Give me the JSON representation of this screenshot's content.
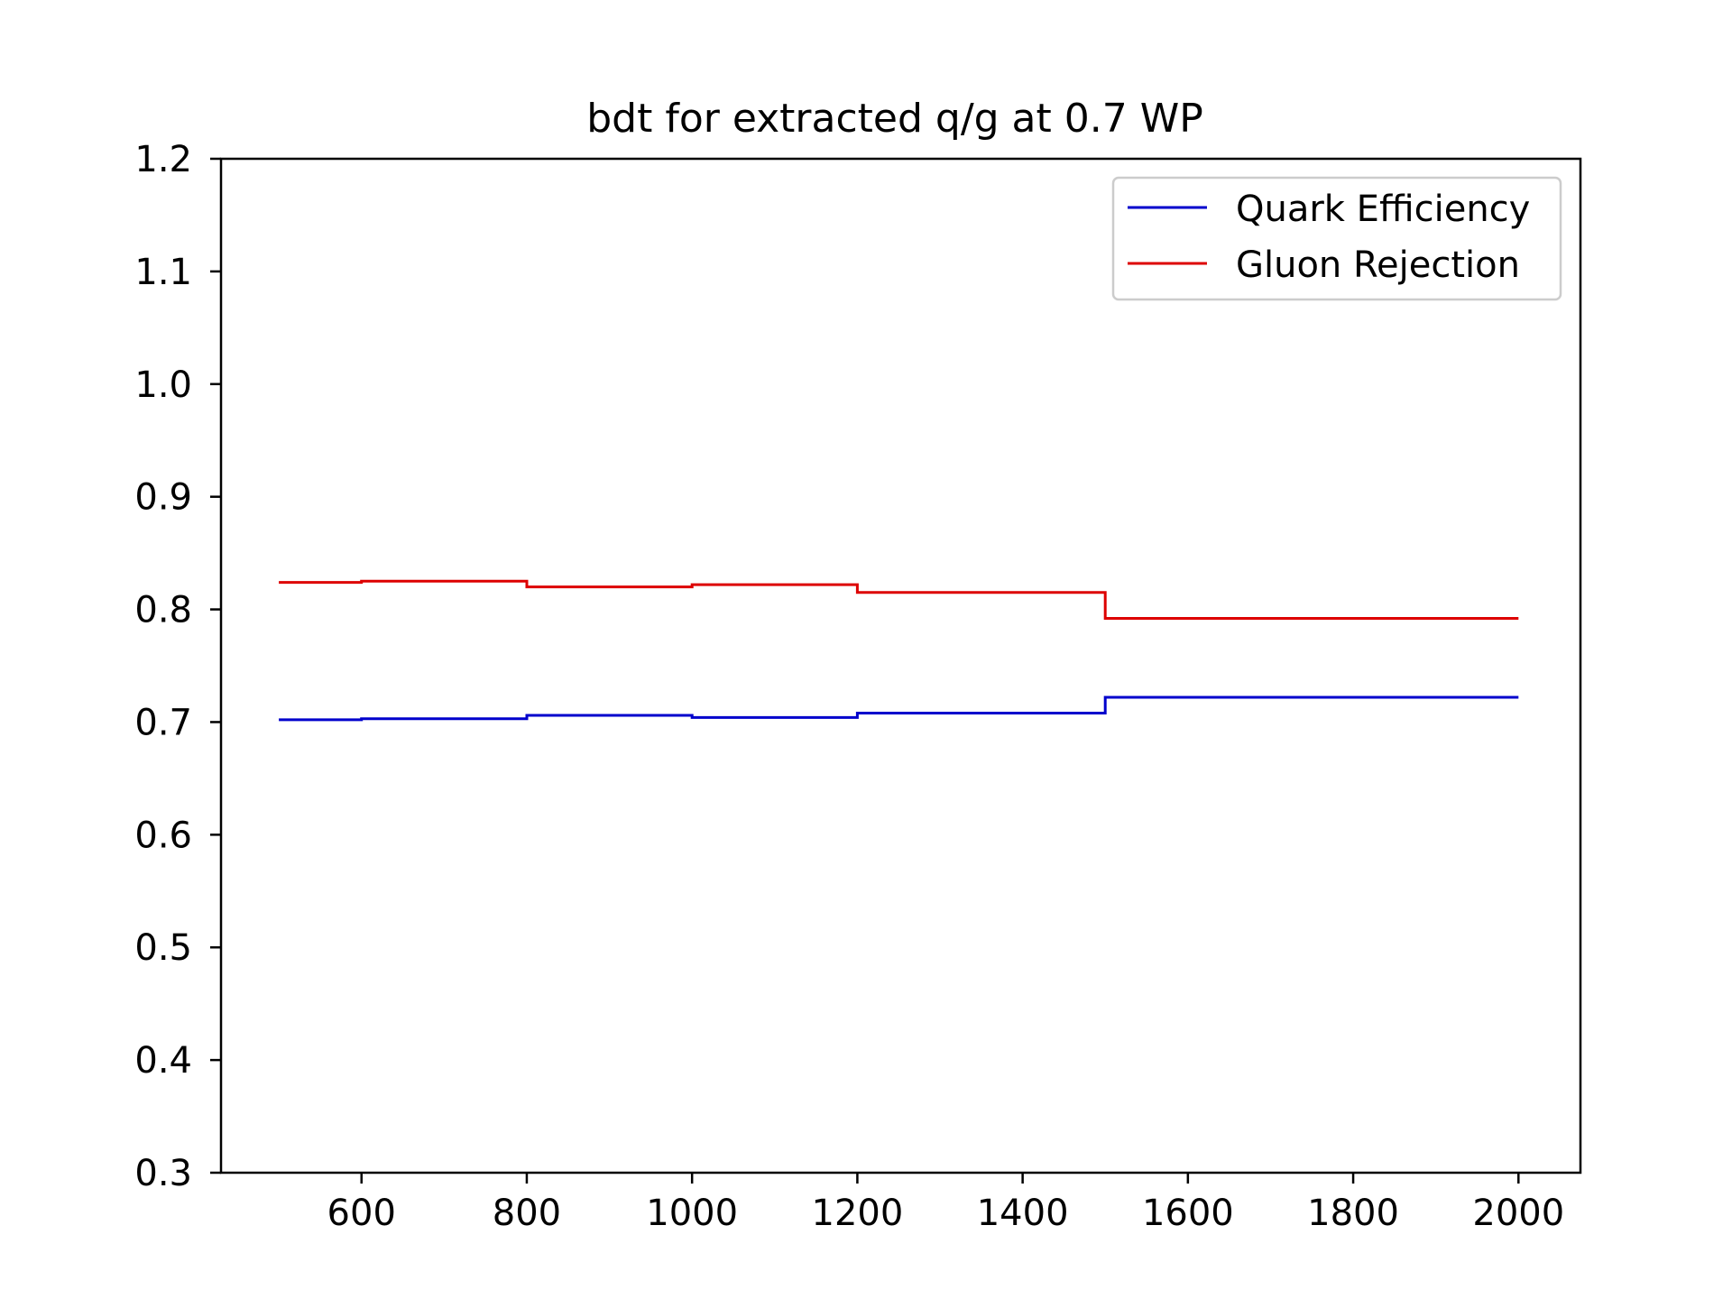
{
  "chart_data": {
    "type": "line",
    "step": "post",
    "title": "bdt for extracted q/g at 0.7 WP",
    "xlabel": "",
    "ylabel": "",
    "xlim": [
      430,
      2075
    ],
    "ylim": [
      0.3,
      1.2
    ],
    "x_ticks": [
      "600",
      "800",
      "1000",
      "1200",
      "1400",
      "1600",
      "1800",
      "2000"
    ],
    "y_ticks": [
      "0.3",
      "0.4",
      "0.5",
      "0.6",
      "0.7",
      "0.8",
      "0.9",
      "1.0",
      "1.1",
      "1.2"
    ],
    "grid": false,
    "legend_position": "top-right",
    "bin_edges": [
      500,
      600,
      800,
      1000,
      1200,
      1500,
      2000
    ],
    "series": [
      {
        "name": "Quark Efficiency",
        "color": "#0000cc",
        "values": [
          0.702,
          0.703,
          0.706,
          0.704,
          0.708,
          0.722
        ]
      },
      {
        "name": "Gluon Rejection",
        "color": "#dd0000",
        "values": [
          0.824,
          0.825,
          0.82,
          0.822,
          0.815,
          0.792
        ]
      }
    ]
  }
}
